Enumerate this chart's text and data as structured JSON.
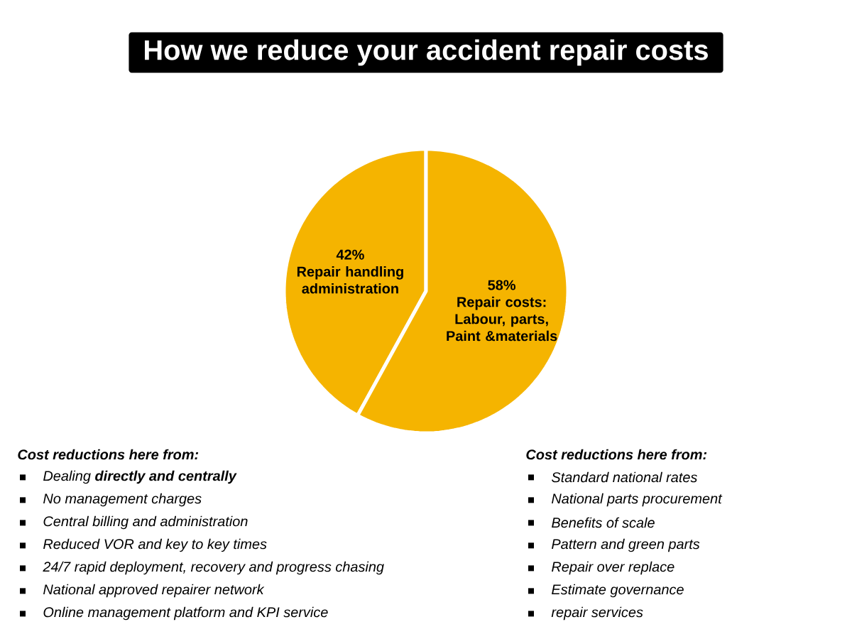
{
  "chart_data": {
    "type": "pie",
    "title": "How we reduce your accident repair costs",
    "categories": [
      "Repair handling administration",
      "Repair costs: Labour, parts, Paint &materials"
    ],
    "values": [
      42,
      58
    ],
    "value_labels": [
      "42%",
      "58%"
    ],
    "colors": [
      "#f5b400",
      "#f5b400"
    ],
    "annotations": [
      "Cost reductions here from:",
      "Dealing **directly and centrally**",
      "No management charges",
      "Central billing and administration",
      "Reduced VOR and key to key times",
      "24/7 rapid deployment, recovery and progress chasing",
      "National approved repairer network",
      "Online management platform and KPI service",
      "Cost reductions here from:",
      "Standard national rates",
      "National parts procurement",
      "Benefits of scale",
      "Pattern and green parts",
      "Repair over replace",
      "Estimate governance",
      "repair services"
    ]
  }
}
